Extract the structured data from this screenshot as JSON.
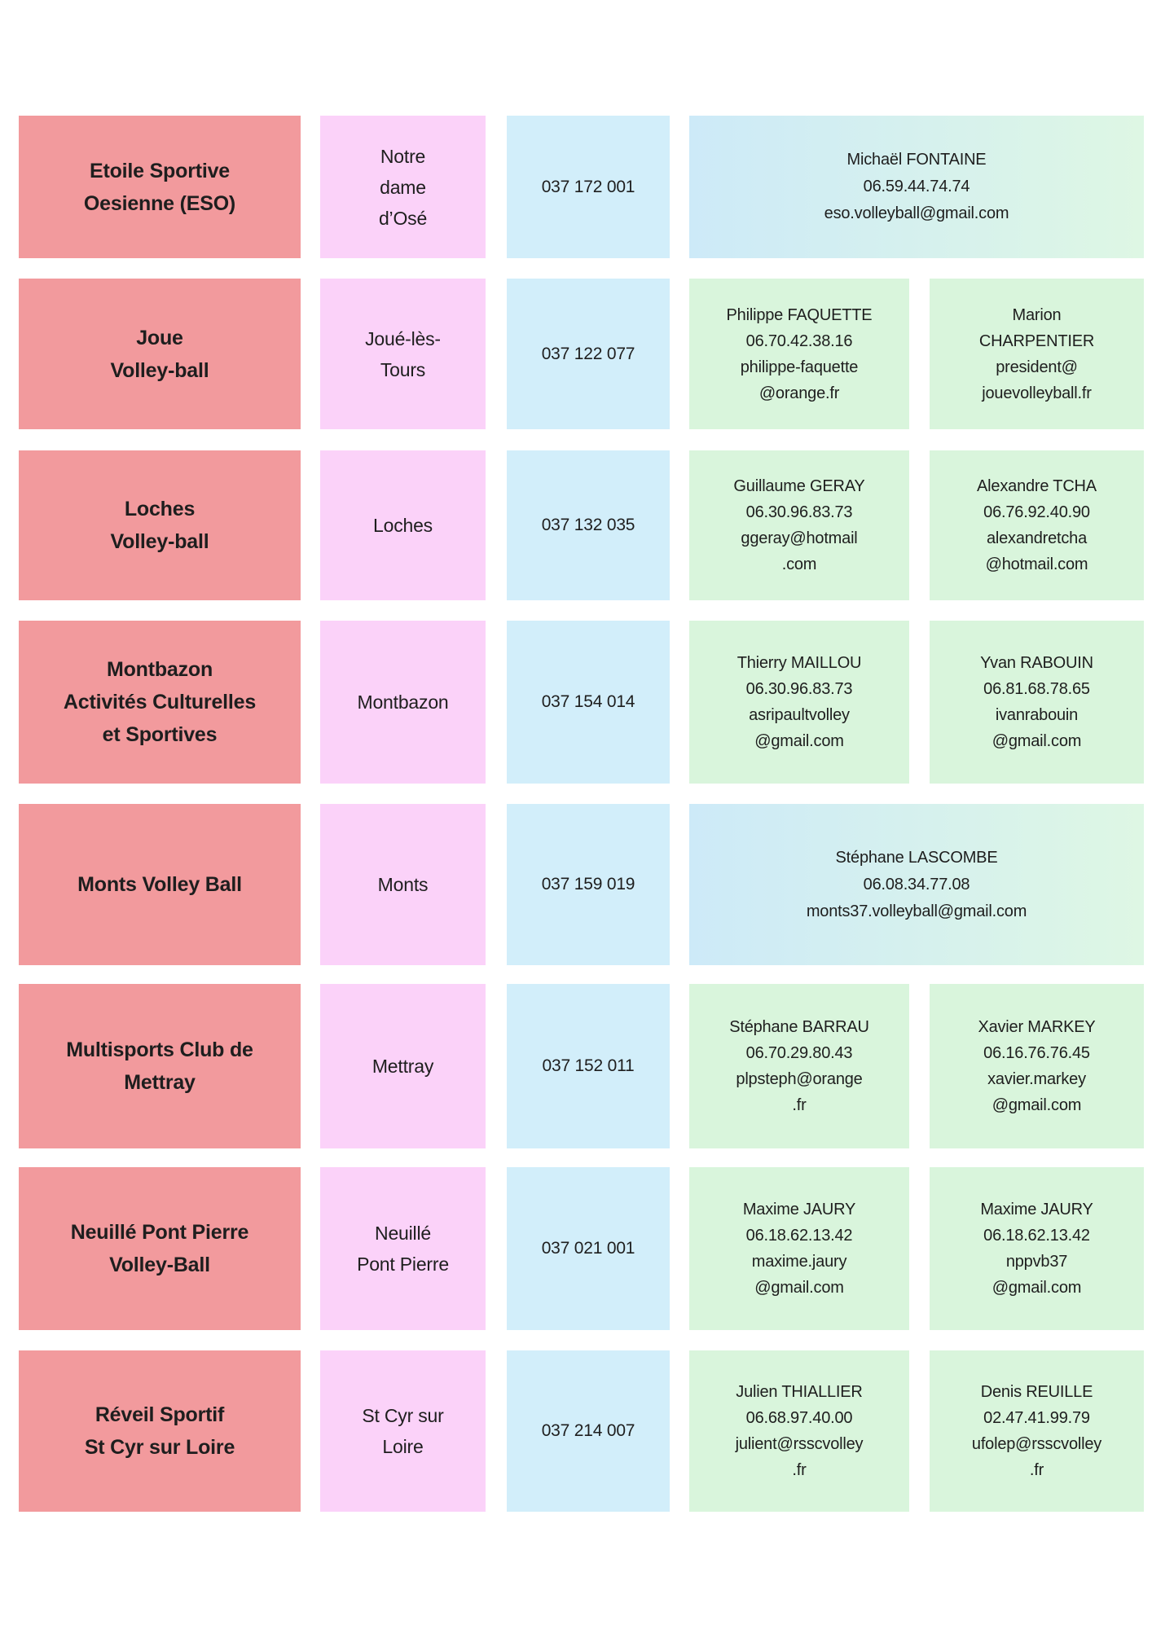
{
  "colors": {
    "background": "#FFFFFF",
    "text": "#1E1E1E",
    "club_cell": "#F29A9D",
    "location_cell": "#FBD2F9",
    "number_cell": "#D2EEFA",
    "contact_cell": "#D9F5DC",
    "wide_contact_left": "#CDEAF8",
    "wide_contact_right": "#DEF7E4"
  },
  "table": {
    "rows": [
      {
        "club": "Etoile Sportive\nOesienne (ESO)",
        "location": "Notre\ndame\nd’Osé",
        "number": "037 172 001",
        "contact_full": "Michaël FONTAINE\n06.59.44.74.74\neso.volleyball@gmail.com"
      },
      {
        "club": "Joue\nVolley-ball",
        "location": "Joué-lès-\nTours",
        "number": "037 122 077",
        "contact_left": "Philippe FAQUETTE\n06.70.42.38.16\nphilippe-faquette\n@orange.fr",
        "contact_right": "Marion\nCHARPENTIER\npresident@\njouevolleyball.fr"
      },
      {
        "club": "Loches\nVolley-ball",
        "location": "Loches",
        "number": "037 132 035",
        "contact_left": "Guillaume GERAY\n06.30.96.83.73\nggeray@hotmail\n.com",
        "contact_right": "Alexandre TCHA\n06.76.92.40.90\nalexandretcha\n@hotmail.com"
      },
      {
        "club": "Montbazon\nActivités Culturelles\net Sportives",
        "location": "Montbazon",
        "number": "037 154 014",
        "contact_left": "Thierry MAILLOU\n06.30.96.83.73\nasripaultvolley\n@gmail.com",
        "contact_right": "Yvan RABOUIN\n06.81.68.78.65\nivanrabouin\n@gmail.com"
      },
      {
        "club": "Monts Volley Ball",
        "location": "Monts",
        "number": "037 159 019",
        "contact_full": "Stéphane LASCOMBE\n06.08.34.77.08\nmonts37.volleyball@gmail.com"
      },
      {
        "club": "Multisports Club de\nMettray",
        "location": "Mettray",
        "number": "037 152 011",
        "contact_left": "Stéphane BARRAU\n06.70.29.80.43\nplpsteph@orange\n.fr",
        "contact_right": "Xavier MARKEY\n06.16.76.76.45\nxavier.markey\n@gmail.com"
      },
      {
        "club": "Neuillé Pont Pierre\nVolley-Ball",
        "location": "Neuillé\nPont Pierre",
        "number": "037 021 001",
        "contact_left": "Maxime JAURY\n06.18.62.13.42\nmaxime.jaury\n@gmail.com",
        "contact_right": "Maxime JAURY\n06.18.62.13.42\nnppvb37\n@gmail.com"
      },
      {
        "club": "Réveil Sportif\nSt Cyr sur Loire",
        "location": "St Cyr sur\nLoire",
        "number": "037 214 007",
        "contact_left": "Julien THIALLIER\n06.68.97.40.00\njulient@rsscvolley\n.fr",
        "contact_right": "Denis REUILLE\n02.47.41.99.79\nufolep@rsscvolley\n.fr"
      }
    ]
  }
}
